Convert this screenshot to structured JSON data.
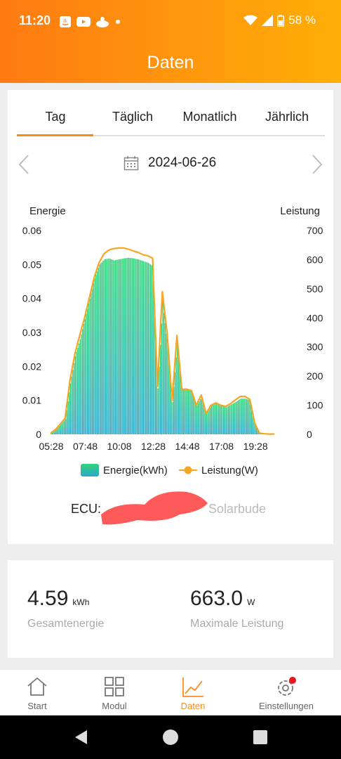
{
  "status": {
    "time": "11:20",
    "battery": "58 %"
  },
  "app": {
    "title": "Daten"
  },
  "tabs": [
    "Tag",
    "Täglich",
    "Monatlich",
    "Jährlich"
  ],
  "date": "2024-06-26",
  "chart": {
    "left_label": "Energie",
    "right_label": "Leistung",
    "legend_energy": "Energie(kWh)",
    "legend_power": "Leistung(W)"
  },
  "chart_data": {
    "type": "bar",
    "title": "",
    "y_left": {
      "label": "Energie",
      "ticks": [
        "0",
        "0.01",
        "0.02",
        "0.03",
        "0.04",
        "0.05",
        "0.06"
      ],
      "ylim": [
        0,
        0.06
      ]
    },
    "y_right": {
      "label": "Leistung",
      "ticks": [
        "0",
        "100",
        "200",
        "300",
        "400",
        "500",
        "600",
        "700"
      ],
      "ylim": [
        0,
        700
      ]
    },
    "x_ticks": [
      "05:28",
      "07:48",
      "10:08",
      "12:28",
      "14:48",
      "17:08",
      "19:28"
    ],
    "series": [
      {
        "name": "Energie(kWh)",
        "kind": "bar",
        "color": "#2ecc8a",
        "x": [
          "05:25",
          "05:45",
          "06:05",
          "06:25",
          "06:45",
          "07:05",
          "07:25",
          "07:45",
          "08:05",
          "08:25",
          "08:45",
          "09:05",
          "09:25",
          "09:45",
          "10:05",
          "10:25",
          "10:45",
          "11:05",
          "11:25",
          "11:45",
          "12:05",
          "12:25",
          "12:45",
          "13:05",
          "13:25",
          "13:45",
          "14:05",
          "14:25",
          "14:45",
          "15:05",
          "15:25",
          "15:45",
          "16:05",
          "16:25",
          "16:45",
          "17:05",
          "17:25",
          "17:45",
          "18:05",
          "18:25",
          "18:45",
          "19:05",
          "19:25",
          "19:45",
          "20:05",
          "20:25",
          "20:45"
        ],
        "values": [
          0.0003,
          0.0013,
          0.0029,
          0.0045,
          0.015,
          0.023,
          0.028,
          0.034,
          0.04,
          0.046,
          0.05,
          0.0515,
          0.0518,
          0.0512,
          0.0515,
          0.0518,
          0.052,
          0.0518,
          0.0515,
          0.051,
          0.0505,
          0.0495,
          0.0135,
          0.039,
          0.0265,
          0.0095,
          0.027,
          0.0135,
          0.0133,
          0.0125,
          0.0085,
          0.011,
          0.006,
          0.0085,
          0.009,
          0.0085,
          0.008,
          0.0087,
          0.0095,
          0.0105,
          0.0105,
          0.01,
          0.003,
          0.0003,
          0.0002,
          0.0001,
          0.0001
        ]
      },
      {
        "name": "Leistung(W)",
        "kind": "line",
        "color": "#f5a623",
        "x": [
          "05:25",
          "05:45",
          "06:05",
          "06:25",
          "06:45",
          "07:05",
          "07:25",
          "07:45",
          "08:05",
          "08:25",
          "08:45",
          "09:05",
          "09:25",
          "09:45",
          "10:05",
          "10:25",
          "10:45",
          "11:05",
          "11:25",
          "11:45",
          "12:05",
          "12:25",
          "12:45",
          "13:05",
          "13:25",
          "13:45",
          "14:05",
          "14:25",
          "14:45",
          "15:05",
          "15:25",
          "15:45",
          "16:05",
          "16:25",
          "16:45",
          "17:05",
          "17:25",
          "17:45",
          "18:05",
          "18:25",
          "18:45",
          "19:05",
          "19:25",
          "19:45",
          "20:05",
          "20:25",
          "20:45"
        ],
        "values": [
          4,
          16,
          35,
          55,
          185,
          275,
          340,
          400,
          470,
          540,
          590,
          620,
          633,
          638,
          640,
          640,
          636,
          630,
          625,
          617,
          613,
          605,
          165,
          490,
          345,
          115,
          340,
          155,
          155,
          150,
          100,
          135,
          72,
          100,
          108,
          100,
          96,
          105,
          118,
          130,
          130,
          120,
          38,
          4,
          2,
          1,
          1
        ]
      }
    ]
  },
  "ecu": {
    "label": "ECU:",
    "name": "Solarbude"
  },
  "stats": {
    "energy_value": "4.59",
    "energy_unit": "kWh",
    "energy_label": "Gesamtenergie",
    "power_value": "663.0",
    "power_unit": "W",
    "power_label": "Maximale Leistung"
  },
  "bottom_nav": [
    "Start",
    "Modul",
    "Daten",
    "Einstellungen"
  ],
  "colors": {
    "accent": "#ff8a1a",
    "energy": "#2ecc8a",
    "power": "#f5a623",
    "badge": "#e8141e"
  }
}
